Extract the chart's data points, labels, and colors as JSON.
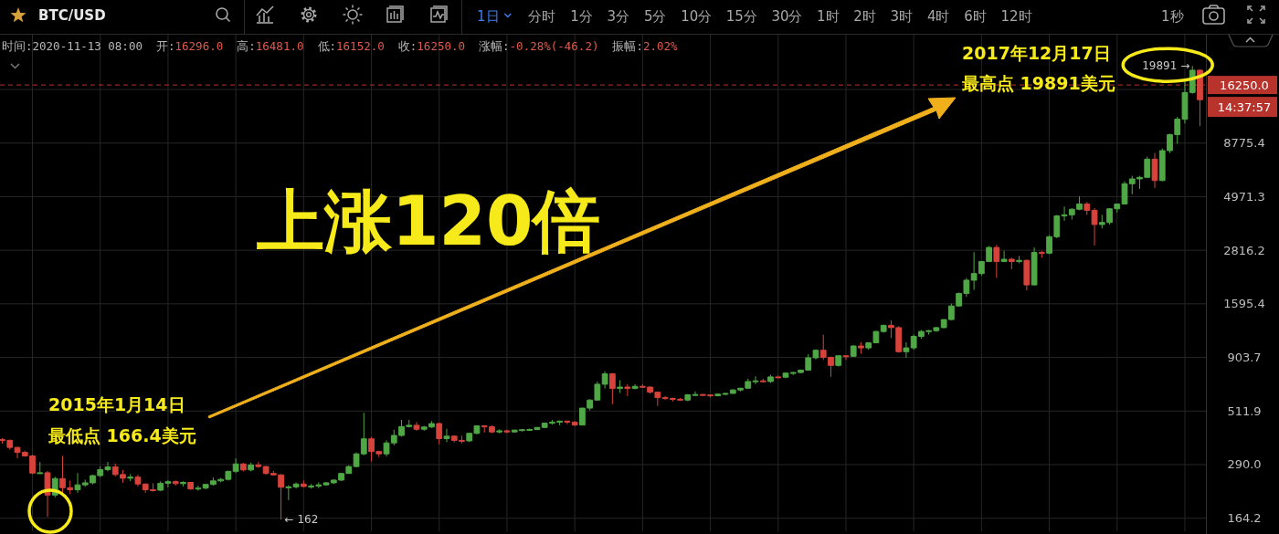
{
  "chart_data": {
    "type": "candlestick",
    "title": "BTC/USD",
    "subtitle": "时间:2020-11-13 08:00  开:16296.0  高:16481.0  低:16152.0  收:16250.0  涨幅:-0.28%(-46.2)  振幅:2.02%",
    "categories": [
      null,
      null,
      null,
      null,
      null,
      null,
      null,
      null,
      null,
      null,
      null,
      null,
      null,
      null,
      null,
      null,
      null,
      null,
      null,
      null,
      null,
      null,
      null,
      null,
      null,
      null,
      null,
      null,
      null,
      null,
      null,
      null,
      null,
      null,
      null,
      null,
      null,
      null,
      null,
      null,
      null,
      null,
      null,
      null,
      null,
      null,
      null,
      null,
      null,
      null,
      null,
      null,
      null,
      null,
      null,
      null,
      null,
      null,
      null,
      null,
      null,
      null,
      null,
      null,
      null,
      null,
      null,
      null,
      null,
      null,
      null,
      null,
      null,
      null,
      null,
      null,
      null,
      null,
      null,
      null,
      null,
      null,
      null,
      null,
      null,
      null,
      null,
      null,
      null,
      null,
      null,
      null,
      null,
      null,
      null,
      null,
      null,
      null,
      null,
      null,
      null,
      null,
      null,
      null,
      null,
      null,
      null,
      null,
      null,
      null,
      null,
      null,
      null,
      null,
      null,
      null,
      null,
      null,
      null,
      null,
      null,
      null,
      null,
      null,
      null,
      null,
      null,
      null,
      null,
      null,
      null,
      null,
      null,
      null,
      null,
      null,
      null,
      null,
      null,
      null,
      null,
      null,
      null,
      null,
      null,
      null,
      null,
      null,
      null,
      null,
      null,
      null,
      null,
      null,
      null,
      null,
      null,
      null,
      null,
      null
    ],
    "ohlc": [
      [
        378,
        384,
        362,
        375
      ],
      [
        375,
        378,
        340,
        348
      ],
      [
        348,
        350,
        310,
        330
      ],
      [
        330,
        336,
        315,
        318
      ],
      [
        318,
        322,
        262,
        265
      ],
      [
        265,
        298,
        264,
        266
      ],
      [
        266,
        271,
        166.4,
        210
      ],
      [
        210,
        255,
        205,
        250
      ],
      [
        250,
        318,
        212,
        227
      ],
      [
        227,
        245,
        212,
        222
      ],
      [
        222,
        265,
        215,
        234
      ],
      [
        234,
        247,
        229,
        239
      ],
      [
        239,
        260,
        235,
        258
      ],
      [
        258,
        285,
        254,
        275
      ],
      [
        275,
        298,
        270,
        283
      ],
      [
        283,
        293,
        256,
        261
      ],
      [
        261,
        274,
        239,
        251
      ],
      [
        251,
        262,
        243,
        254
      ],
      [
        254,
        261,
        230,
        236
      ],
      [
        236,
        237,
        215,
        222
      ],
      [
        222,
        238,
        218,
        221
      ],
      [
        221,
        243,
        219,
        238
      ],
      [
        238,
        246,
        228,
        242
      ],
      [
        242,
        245,
        232,
        237
      ],
      [
        237,
        243,
        230,
        240
      ],
      [
        240,
        241,
        222,
        224
      ],
      [
        224,
        232,
        220,
        226
      ],
      [
        226,
        236,
        223,
        235
      ],
      [
        235,
        253,
        232,
        244
      ],
      [
        244,
        252,
        240,
        248
      ],
      [
        248,
        272,
        245,
        270
      ],
      [
        270,
        310,
        265,
        292
      ],
      [
        292,
        295,
        270,
        274
      ],
      [
        274,
        296,
        270,
        289
      ],
      [
        289,
        298,
        280,
        284
      ],
      [
        284,
        286,
        260,
        264
      ],
      [
        264,
        271,
        258,
        260
      ],
      [
        260,
        262,
        162,
        228
      ],
      [
        228,
        233,
        199,
        229
      ],
      [
        229,
        240,
        225,
        236
      ],
      [
        236,
        245,
        228,
        230
      ],
      [
        230,
        236,
        225,
        231
      ],
      [
        231,
        240,
        226,
        234
      ],
      [
        234,
        241,
        232,
        239
      ],
      [
        239,
        248,
        236,
        246
      ],
      [
        246,
        266,
        244,
        264
      ],
      [
        264,
        288,
        263,
        284
      ],
      [
        284,
        330,
        282,
        325
      ],
      [
        325,
        502,
        320,
        381
      ],
      [
        381,
        388,
        300,
        333
      ],
      [
        333,
        336,
        314,
        325
      ],
      [
        325,
        375,
        316,
        365
      ],
      [
        365,
        420,
        355,
        395
      ],
      [
        395,
        466,
        390,
        434
      ],
      [
        434,
        466,
        430,
        440
      ],
      [
        440,
        455,
        415,
        422
      ],
      [
        422,
        437,
        415,
        432
      ],
      [
        432,
        460,
        428,
        448
      ],
      [
        448,
        452,
        360,
        382
      ],
      [
        382,
        424,
        368,
        392
      ],
      [
        392,
        396,
        367,
        375
      ],
      [
        375,
        394,
        363,
        373
      ],
      [
        373,
        407,
        368,
        404
      ],
      [
        404,
        441,
        399,
        437
      ],
      [
        437,
        441,
        407,
        433
      ],
      [
        433,
        439,
        405,
        410
      ],
      [
        410,
        422,
        403,
        415
      ],
      [
        415,
        420,
        405,
        410
      ],
      [
        410,
        421,
        408,
        418
      ],
      [
        418,
        423,
        412,
        420
      ],
      [
        420,
        425,
        416,
        421
      ],
      [
        421,
        431,
        418,
        430
      ],
      [
        430,
        452,
        427,
        450
      ],
      [
        450,
        466,
        443,
        455
      ],
      [
        455,
        462,
        440,
        460
      ],
      [
        460,
        462,
        445,
        455
      ],
      [
        455,
        460,
        436,
        441
      ],
      [
        441,
        530,
        440,
        528
      ],
      [
        528,
        580,
        515,
        575
      ],
      [
        575,
        700,
        570,
        680
      ],
      [
        680,
        780,
        650,
        760
      ],
      [
        760,
        765,
        550,
        650
      ],
      [
        650,
        710,
        620,
        660
      ],
      [
        660,
        680,
        600,
        650
      ],
      [
        650,
        680,
        645,
        665
      ],
      [
        665,
        680,
        655,
        660
      ],
      [
        660,
        665,
        615,
        625
      ],
      [
        625,
        628,
        540,
        590
      ],
      [
        590,
        600,
        575,
        585
      ],
      [
        585,
        590,
        565,
        580
      ],
      [
        580,
        588,
        570,
        575
      ],
      [
        575,
        612,
        568,
        608
      ],
      [
        608,
        630,
        600,
        610
      ],
      [
        610,
        612,
        600,
        607
      ],
      [
        607,
        611,
        590,
        602
      ],
      [
        602,
        617,
        598,
        612
      ],
      [
        612,
        620,
        605,
        617
      ],
      [
        617,
        645,
        615,
        640
      ],
      [
        640,
        655,
        630,
        652
      ],
      [
        652,
        720,
        650,
        700
      ],
      [
        700,
        740,
        680,
        705
      ],
      [
        705,
        720,
        695,
        700
      ],
      [
        700,
        752,
        690,
        735
      ],
      [
        735,
        745,
        725,
        733
      ],
      [
        733,
        770,
        725,
        765
      ],
      [
        765,
        775,
        750,
        770
      ],
      [
        770,
        792,
        765,
        790
      ],
      [
        790,
        935,
        785,
        900
      ],
      [
        900,
        985,
        885,
        975
      ],
      [
        975,
        1150,
        880,
        905
      ],
      [
        905,
        910,
        735,
        830
      ],
      [
        830,
        920,
        820,
        920
      ],
      [
        920,
        925,
        880,
        915
      ],
      [
        915,
        1030,
        910,
        1020
      ],
      [
        1020,
        1060,
        940,
        1000
      ],
      [
        1000,
        1060,
        980,
        1055
      ],
      [
        1055,
        1200,
        1050,
        1190
      ],
      [
        1190,
        1280,
        1175,
        1270
      ],
      [
        1270,
        1340,
        1110,
        1240
      ],
      [
        1240,
        1260,
        950,
        960
      ],
      [
        960,
        1060,
        900,
        1000
      ],
      [
        1000,
        1150,
        980,
        1130
      ],
      [
        1130,
        1210,
        1100,
        1190
      ],
      [
        1190,
        1210,
        1150,
        1200
      ],
      [
        1200,
        1250,
        1185,
        1240
      ],
      [
        1240,
        1355,
        1230,
        1350
      ],
      [
        1350,
        1600,
        1340,
        1560
      ],
      [
        1560,
        1800,
        1550,
        1780
      ],
      [
        1780,
        2100,
        1720,
        2050
      ],
      [
        2050,
        2760,
        1850,
        2200
      ],
      [
        2200,
        2500,
        2150,
        2500
      ],
      [
        2500,
        2950,
        2480,
        2900
      ],
      [
        2900,
        2980,
        2100,
        2500
      ],
      [
        2500,
        2800,
        2480,
        2560
      ],
      [
        2560,
        2600,
        2300,
        2500
      ],
      [
        2500,
        2650,
        2450,
        2530
      ],
      [
        2530,
        2550,
        1840,
        1950
      ],
      [
        1950,
        2900,
        1940,
        2750
      ],
      [
        2750,
        2800,
        2600,
        2730
      ],
      [
        2730,
        3300,
        2700,
        3250
      ],
      [
        3250,
        4100,
        3200,
        4050
      ],
      [
        4050,
        4480,
        3850,
        4100
      ],
      [
        4100,
        4400,
        3900,
        4350
      ],
      [
        4350,
        4980,
        4300,
        4600
      ],
      [
        4600,
        4700,
        4100,
        4300
      ],
      [
        4300,
        4400,
        2960,
        3700
      ],
      [
        3700,
        4100,
        3550,
        3780
      ],
      [
        3780,
        4400,
        3700,
        4370
      ],
      [
        4370,
        4600,
        4200,
        4600
      ],
      [
        4600,
        5850,
        4600,
        5700
      ],
      [
        5700,
        6200,
        5100,
        6000
      ],
      [
        6000,
        6200,
        5400,
        6100
      ],
      [
        6100,
        7600,
        6100,
        7400
      ],
      [
        7400,
        7900,
        5450,
        5900
      ],
      [
        5900,
        8300,
        5850,
        8100
      ],
      [
        8100,
        9700,
        7900,
        9600
      ],
      [
        9600,
        11600,
        8700,
        11300
      ],
      [
        11300,
        17200,
        10800,
        15000
      ],
      [
        15000,
        19891,
        14800,
        19000
      ],
      [
        19000,
        19200,
        10500,
        13900
      ]
    ],
    "colors": [
      "#d7433b",
      "#d7433b",
      "#d7433b",
      "#d7433b",
      "#d7433b",
      "#4fa845",
      "#d7433b",
      "#4fa845",
      "#d7433b",
      "#d7433b",
      "#4fa845",
      "#4fa845",
      "#4fa845",
      "#4fa845",
      "#4fa845",
      "#d7433b",
      "#d7433b",
      "#4fa845",
      "#d7433b",
      "#d7433b",
      "#d7433b",
      "#4fa845",
      "#4fa845",
      "#d7433b",
      "#4fa845",
      "#d7433b",
      "#4fa845",
      "#4fa845",
      "#4fa845",
      "#4fa845",
      "#4fa845",
      "#4fa845",
      "#d7433b",
      "#4fa845",
      "#d7433b",
      "#d7433b",
      "#d7433b",
      "#d7433b",
      "#4fa845",
      "#4fa845",
      "#d7433b",
      "#4fa845",
      "#4fa845",
      "#4fa845",
      "#4fa845",
      "#4fa845",
      "#4fa845",
      "#4fa845",
      "#4fa845",
      "#d7433b",
      "#d7433b",
      "#4fa845",
      "#4fa845",
      "#4fa845",
      "#4fa845",
      "#d7433b",
      "#4fa845",
      "#4fa845",
      "#d7433b",
      "#4fa845",
      "#d7433b",
      "#d7433b",
      "#4fa845",
      "#4fa845",
      "#d7433b",
      "#d7433b",
      "#4fa845",
      "#d7433b",
      "#4fa845",
      "#4fa845",
      "#4fa845",
      "#4fa845",
      "#4fa845",
      "#4fa845",
      "#4fa845",
      "#d7433b",
      "#d7433b",
      "#4fa845",
      "#4fa845",
      "#4fa845",
      "#4fa845",
      "#d7433b",
      "#4fa845",
      "#d7433b",
      "#4fa845",
      "#d7433b",
      "#d7433b",
      "#d7433b",
      "#d7433b",
      "#d7433b",
      "#d7433b",
      "#4fa845",
      "#4fa845",
      "#d7433b",
      "#d7433b",
      "#4fa845",
      "#4fa845",
      "#4fa845",
      "#4fa845",
      "#4fa845",
      "#4fa845",
      "#d7433b",
      "#4fa845",
      "#d7433b",
      "#4fa845",
      "#4fa845",
      "#4fa845",
      "#4fa845",
      "#4fa845",
      "#d7433b",
      "#d7433b",
      "#4fa845",
      "#d7433b",
      "#4fa845",
      "#d7433b",
      "#4fa845",
      "#4fa845",
      "#4fa845",
      "#d7433b",
      "#d7433b",
      "#4fa845",
      "#4fa845",
      "#4fa845",
      "#4fa845",
      "#4fa845",
      "#4fa845",
      "#4fa845",
      "#4fa845",
      "#4fa845",
      "#4fa845",
      "#4fa845",
      "#4fa845",
      "#d7433b",
      "#4fa845",
      "#d7433b",
      "#4fa845",
      "#d7433b",
      "#4fa845",
      "#d7433b",
      "#4fa845",
      "#4fa845",
      "#4fa845",
      "#4fa845",
      "#4fa845",
      "#d7433b",
      "#d7433b",
      "#4fa845",
      "#4fa845",
      "#4fa845",
      "#4fa845",
      "#4fa845",
      "#4fa845",
      "#4fa845",
      "#d7433b",
      "#4fa845",
      "#4fa845",
      "#4fa845",
      "#4fa845",
      "#4fa845",
      "#d7433b"
    ],
    "log": true,
    "ylim": [
      143,
      27700
    ],
    "yticks": [
      164.2,
      {
        "value": 290,
        "label": "290.0"
      },
      511.9,
      903.7,
      1595.4,
      2816.2,
      4971.3,
      8775.4,
      {
        "value": 15490,
        "label": null
      }
    ],
    "tick_labels": "y",
    "grid": true,
    "ref_lines": [
      {
        "axis": "y",
        "value": 16250.0,
        "label": "16250.0",
        "color": "#b8332c",
        "line_style": "dashed"
      }
    ],
    "annotations": [
      "上涨120倍",
      "2015年1月14日",
      "最低点 166.4美元",
      "2017年12月17日",
      "最高点 19891美元",
      "19891 →",
      "← 162",
      "14:37:57",
      "1日",
      "分时",
      "1分",
      "3分",
      "5分",
      "10分",
      "15分",
      "30分",
      "1时",
      "2时",
      "3时",
      "4时",
      "6时",
      "12时",
      "1秒"
    ]
  }
}
